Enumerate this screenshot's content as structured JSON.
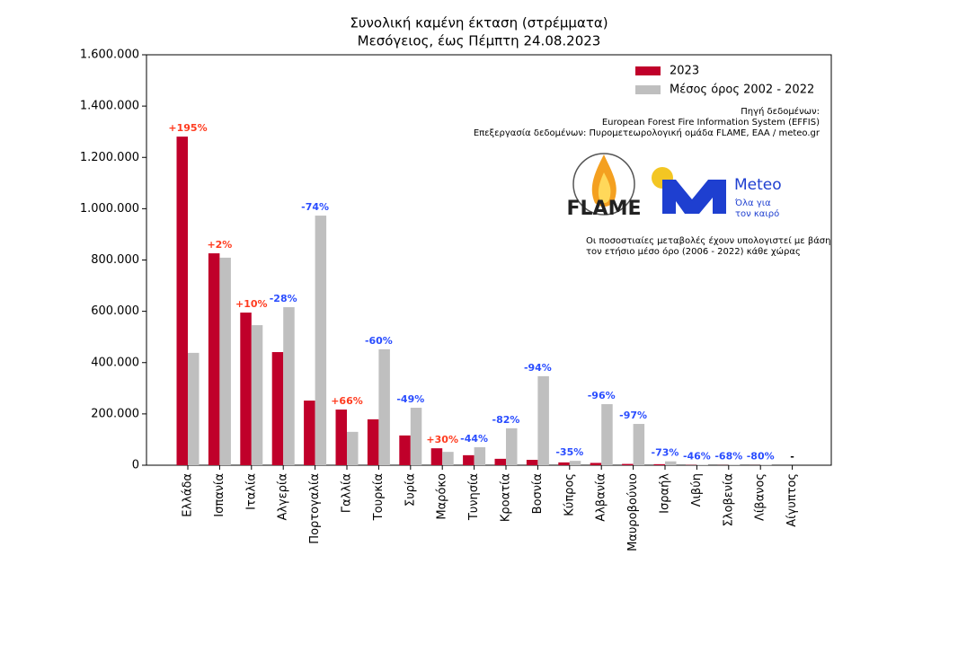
{
  "chart_data": {
    "type": "bar",
    "title": "Συνολική καμένη έκταση (στρέμματα)",
    "subtitle": "Μεσόγειος, έως Πέμπτη 24.08.2023",
    "categories": [
      "Ελλάδα",
      "Ισπανία",
      "Ιταλία",
      "Αλγερία",
      "Πορτογαλία",
      "Γαλλία",
      "Τουρκία",
      "Συρία",
      "Μαρόκο",
      "Τυνησία",
      "Κροατία",
      "Βοσνία",
      "Κύπρος",
      "Αλβανία",
      "Μαυροβούνιο",
      "Ισραήλ",
      "Λιβύη",
      "Σλοβενία",
      "Λίβανος",
      "Αίγυπτος"
    ],
    "series": [
      {
        "name": "2023",
        "color": "#c0002a",
        "values": [
          1281000,
          826000,
          595000,
          441000,
          252000,
          217000,
          179000,
          116000,
          66000,
          39000,
          25000,
          21000,
          11000,
          9000,
          5000,
          4000,
          1000,
          500,
          300,
          0
        ]
      },
      {
        "name": "Μέσος όρος 2002 - 2022",
        "color": "#bfbfbf",
        "values": [
          438000,
          809000,
          546000,
          616000,
          973000,
          130000,
          452000,
          224000,
          52000,
          70000,
          144000,
          347000,
          17000,
          238000,
          161000,
          15000,
          2000,
          1500,
          1500,
          0
        ]
      }
    ],
    "change_percent": {
      "values": [
        195,
        2,
        10,
        -28,
        -74,
        66,
        -60,
        -49,
        30,
        -44,
        -82,
        -94,
        -35,
        -96,
        -97,
        -73,
        -46,
        -68,
        -80,
        null
      ],
      "value_labels": [
        "+195%",
        "+2%",
        "+10%",
        "-28%",
        "-74%",
        "+66%",
        "-60%",
        "-49%",
        "+30%",
        "-44%",
        "-82%",
        "-94%",
        "-35%",
        "-96%",
        "-97%",
        "-73%",
        "-46%",
        "-68%",
        "-80%",
        "-"
      ],
      "positive_color": "#ff3b1f",
      "negative_color": "#2a4dff"
    },
    "ylim": [
      0,
      1600000
    ],
    "yticks": [
      0,
      {
        "value": 200000,
        "label": "200.000"
      },
      {
        "value": 400000,
        "label": "400.000"
      },
      {
        "value": 600000,
        "label": "600.000"
      },
      {
        "value": 800000,
        "label": "800.000"
      },
      {
        "value": 1000000,
        "label": "1.000.000"
      },
      {
        "value": 1200000,
        "label": "1.200.000"
      },
      {
        "value": 1400000,
        "label": "1.400.000"
      },
      {
        "value": 1600000,
        "label": "1.600.000"
      }
    ],
    "legend": "upper right",
    "source": [
      "Πηγή δεδομένων:",
      "European Forest Fire Information System (EFFIS)",
      "Επεξεργασία δεδομένων: Πυρομετεωρολογική ομάδα FLAME, ΕΑΑ / meteo.gr"
    ],
    "note": [
      "Οι ποσοστιαίες μεταβολές έχουν υπολογιστεί με βάση",
      "τον ετήσιο μέσο όρο (2006 - 2022) κάθε χώρας"
    ],
    "logos": {
      "flame": "FLAME",
      "meteo": "Meteo",
      "meteo_tagline": [
        "Όλα για",
        "τον καιρό"
      ]
    }
  }
}
